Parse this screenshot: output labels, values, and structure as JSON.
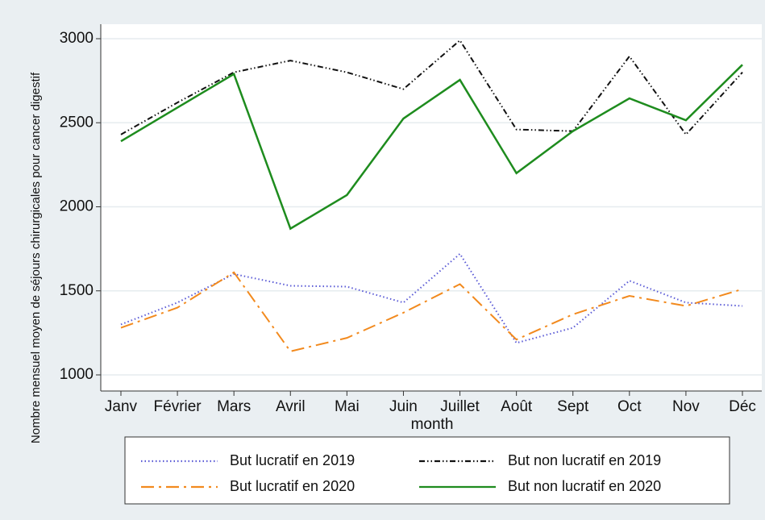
{
  "chart_data": {
    "type": "line",
    "y_label": "Nombre mensuel moyen de séjours chirurgicales pour cancer digestif",
    "x_label": "month",
    "categories": [
      "Janv",
      "Février",
      "Mars",
      "Avril",
      "Mai",
      "Juin",
      "Juillet",
      "Août",
      "Sept",
      "Oct",
      "Nov",
      "Déc"
    ],
    "series": [
      {
        "name": "But lucratif en 2019",
        "color": "#5b5bd6",
        "line_style": "dotted",
        "values": [
          1300,
          1430,
          1600,
          1530,
          1525,
          1430,
          1720,
          1190,
          1280,
          1560,
          1430,
          1410
        ]
      },
      {
        "name": "But non lucratif en 2019",
        "color": "#111111",
        "line_style": "dash-dot-dot",
        "values": [
          2430,
          2620,
          2800,
          2870,
          2800,
          2700,
          2990,
          2460,
          2450,
          2895,
          2430,
          2800
        ]
      },
      {
        "name": "But lucratif en 2020",
        "color": "#f28a1e",
        "line_style": "long-dash-dot",
        "values": [
          1280,
          1400,
          1610,
          1140,
          1220,
          1370,
          1540,
          1210,
          1360,
          1470,
          1410,
          1510
        ]
      },
      {
        "name": "But non lucratif en 2020",
        "color": "#1e8c1e",
        "line_style": "solid",
        "values": [
          2390,
          2590,
          2790,
          1870,
          2070,
          2525,
          2755,
          2200,
          2450,
          2645,
          2515,
          2845
        ]
      }
    ],
    "ylim": [
      1000,
      3000
    ],
    "yticks": [
      1000,
      1500,
      2000,
      2500,
      3000
    ],
    "grid": true,
    "legend": "bottom"
  }
}
